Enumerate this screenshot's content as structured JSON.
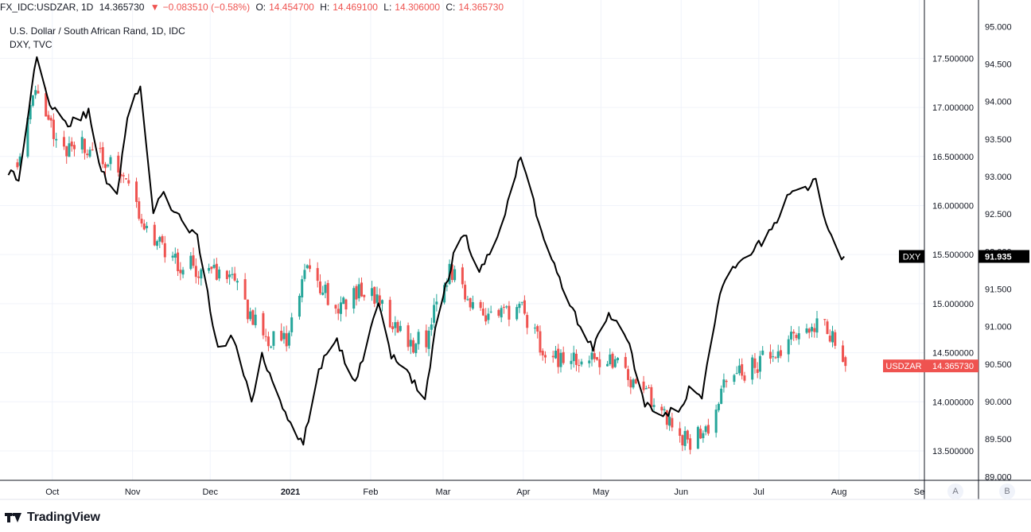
{
  "header": {
    "symbol": "FX_IDC:USDZAR, 1D",
    "last": "14.365730",
    "arrow": "▼",
    "change": "−0.083510 (−0.58%)",
    "o_label": "O:",
    "o_val": "14.454700",
    "h_label": "H:",
    "h_val": "14.469100",
    "l_label": "L:",
    "l_val": "14.306000",
    "c_label": "C:",
    "c_val": "14.365730"
  },
  "legend": {
    "main": "U.S. Dollar / South African Rand, 1D, IDC",
    "overlay": "DXY, TVC"
  },
  "footer": {
    "brand": "TradingView",
    "btn_a": "A",
    "btn_b": "B"
  },
  "chart_data": {
    "type": "line",
    "x_labels": [
      "Oct",
      "Nov",
      "Dec",
      "2021",
      "Feb",
      "Mar",
      "Apr",
      "May",
      "Jun",
      "Jul",
      "Aug",
      "Se"
    ],
    "series": [
      {
        "name": "USDZAR",
        "kind": "candlestick",
        "axis": "left",
        "color_up": "#26a69a",
        "color_down": "#ef5350",
        "last_label": "14.365730",
        "anchors": [
          [
            "2020-09-17",
            16.5
          ],
          [
            "2020-09-21",
            16.9
          ],
          [
            "2020-09-25",
            17.2
          ],
          [
            "2020-09-29",
            16.9
          ],
          [
            "2020-10-05",
            16.55
          ],
          [
            "2020-10-14",
            16.6
          ],
          [
            "2020-10-22",
            16.4
          ],
          [
            "2020-10-28",
            16.35
          ],
          [
            "2020-11-05",
            15.8
          ],
          [
            "2020-11-12",
            15.55
          ],
          [
            "2020-11-20",
            15.4
          ],
          [
            "2020-11-27",
            15.35
          ],
          [
            "2020-12-04",
            15.3
          ],
          [
            "2020-12-10",
            15.2
          ],
          [
            "2020-12-18",
            14.8
          ],
          [
            "2020-12-23",
            14.65
          ],
          [
            "2020-12-31",
            14.65
          ],
          [
            "2021-01-07",
            15.4
          ],
          [
            "2021-01-12",
            15.2
          ],
          [
            "2021-01-19",
            14.95
          ],
          [
            "2021-01-26",
            15.15
          ],
          [
            "2021-02-03",
            15.05
          ],
          [
            "2021-02-08",
            14.85
          ],
          [
            "2021-02-16",
            14.6
          ],
          [
            "2021-02-22",
            14.65
          ],
          [
            "2021-02-26",
            15.05
          ],
          [
            "2021-03-03",
            15.35
          ],
          [
            "2021-03-09",
            15.1
          ],
          [
            "2021-03-15",
            14.9
          ],
          [
            "2021-03-22",
            14.85
          ],
          [
            "2021-03-29",
            15.0
          ],
          [
            "2021-04-07",
            14.6
          ],
          [
            "2021-04-15",
            14.4
          ],
          [
            "2021-04-21",
            14.45
          ],
          [
            "2021-04-29",
            14.4
          ],
          [
            "2021-05-06",
            14.45
          ],
          [
            "2021-05-13",
            14.15
          ],
          [
            "2021-05-20",
            14.05
          ],
          [
            "2021-05-27",
            13.8
          ],
          [
            "2021-06-03",
            13.6
          ],
          [
            "2021-06-10",
            13.7
          ],
          [
            "2021-06-17",
            14.15
          ],
          [
            "2021-06-24",
            14.3
          ],
          [
            "2021-07-01",
            14.4
          ],
          [
            "2021-07-08",
            14.5
          ],
          [
            "2021-07-15",
            14.65
          ],
          [
            "2021-07-21",
            14.8
          ],
          [
            "2021-07-26",
            14.85
          ],
          [
            "2021-07-30",
            14.55
          ],
          [
            "2021-08-03",
            14.37
          ]
        ]
      },
      {
        "name": "DXY",
        "kind": "line",
        "axis": "right",
        "color": "#000000",
        "last_label": "91.935",
        "anchors": [
          [
            "2020-09-14",
            93.08
          ],
          [
            "2020-09-18",
            92.95
          ],
          [
            "2020-09-24",
            94.4
          ],
          [
            "2020-09-25",
            94.64
          ],
          [
            "2020-09-30",
            94.0
          ],
          [
            "2020-10-07",
            93.7
          ],
          [
            "2020-10-15",
            93.85
          ],
          [
            "2020-10-20",
            93.05
          ],
          [
            "2020-10-26",
            92.78
          ],
          [
            "2020-10-31",
            94.05
          ],
          [
            "2020-11-04",
            94.15
          ],
          [
            "2020-11-09",
            92.55
          ],
          [
            "2020-11-13",
            92.75
          ],
          [
            "2020-11-20",
            92.4
          ],
          [
            "2020-11-26",
            92.17
          ],
          [
            "2020-12-04",
            90.7
          ],
          [
            "2020-12-10",
            90.85
          ],
          [
            "2020-12-17",
            90.0
          ],
          [
            "2020-12-21",
            90.65
          ],
          [
            "2020-12-29",
            89.93
          ],
          [
            "2021-01-06",
            89.43
          ],
          [
            "2021-01-12",
            90.45
          ],
          [
            "2021-01-19",
            90.8
          ],
          [
            "2021-01-26",
            90.22
          ],
          [
            "2021-02-04",
            91.35
          ],
          [
            "2021-02-09",
            90.6
          ],
          [
            "2021-02-15",
            90.4
          ],
          [
            "2021-02-22",
            90.04
          ],
          [
            "2021-02-26",
            90.95
          ],
          [
            "2021-03-05",
            91.95
          ],
          [
            "2021-03-09",
            92.25
          ],
          [
            "2021-03-15",
            91.7
          ],
          [
            "2021-03-23",
            92.3
          ],
          [
            "2021-03-31",
            93.3
          ],
          [
            "2021-04-07",
            92.4
          ],
          [
            "2021-04-14",
            91.7
          ],
          [
            "2021-04-21",
            91.15
          ],
          [
            "2021-04-28",
            90.7
          ],
          [
            "2021-05-04",
            91.2
          ],
          [
            "2021-05-12",
            90.75
          ],
          [
            "2021-05-18",
            89.95
          ],
          [
            "2021-05-25",
            89.85
          ],
          [
            "2021-06-01",
            89.9
          ],
          [
            "2021-06-04",
            90.15
          ],
          [
            "2021-06-09",
            90.05
          ],
          [
            "2021-06-16",
            91.45
          ],
          [
            "2021-06-22",
            91.8
          ],
          [
            "2021-06-29",
            92.0
          ],
          [
            "2021-07-07",
            92.35
          ],
          [
            "2021-07-13",
            92.8
          ],
          [
            "2021-07-20",
            92.85
          ],
          [
            "2021-07-23",
            92.95
          ],
          [
            "2021-07-28",
            92.25
          ],
          [
            "2021-08-02",
            91.94
          ],
          [
            "2021-08-03",
            91.935
          ]
        ]
      }
    ],
    "ylim_left": [
      13.2,
      17.9
    ],
    "ylim_right": [
      88.95,
      95.1
    ],
    "yticks_left": [
      "13.500000",
      "14.000000",
      "14.500000",
      "15.000000",
      "15.500000",
      "16.000000",
      "16.500000",
      "17.000000",
      "17.500000"
    ],
    "yticks_right": [
      "89.000",
      "89.500",
      "90.000",
      "90.500",
      "91.000",
      "91.500",
      "92.000",
      "92.500",
      "93.000",
      "93.500",
      "94.000",
      "94.500",
      "95.000"
    ],
    "grid": true,
    "legend": "top-left"
  }
}
